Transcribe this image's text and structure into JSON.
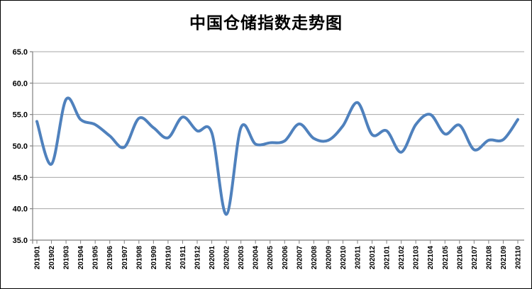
{
  "chart_data": {
    "type": "line",
    "title": "中国仓储指数走势图",
    "xlabel": "",
    "ylabel": "",
    "ylim": [
      35.0,
      65.0
    ],
    "ytick_step": 5.0,
    "ytick_labels": [
      "65.0",
      "60.0",
      "55.0",
      "50.0",
      "45.0",
      "40.0",
      "35.0"
    ],
    "grid": "horizontal",
    "legend": "none",
    "line_smooth": true,
    "categories": [
      "201901",
      "201902",
      "201903",
      "201904",
      "201905",
      "201906",
      "201907",
      "201908",
      "201909",
      "201910",
      "201911",
      "201912",
      "202001",
      "202002",
      "202003",
      "202004",
      "202005",
      "202006",
      "202007",
      "202008",
      "202009",
      "202010",
      "202011",
      "202012",
      "202101",
      "202102",
      "202103",
      "202104",
      "202105",
      "202106",
      "202107",
      "202108",
      "202109",
      "202110"
    ],
    "series": [
      {
        "name": "仓储指数",
        "values": [
          53.9,
          47.1,
          57.4,
          54.2,
          53.4,
          51.6,
          49.8,
          54.4,
          52.9,
          51.3,
          54.6,
          52.4,
          52.1,
          39.1,
          52.9,
          50.3,
          50.5,
          50.8,
          53.5,
          51.2,
          50.9,
          53.2,
          56.9,
          51.8,
          52.4,
          49.0,
          53.4,
          55.0,
          51.9,
          53.3,
          49.4,
          50.9,
          51.0,
          54.2
        ]
      }
    ],
    "colors": {
      "line": "#4F81BD",
      "gridline": "#A6A6A6",
      "axis": "#808080",
      "label": "#000000",
      "background": "#FFFFFF",
      "border": "#000000"
    }
  }
}
